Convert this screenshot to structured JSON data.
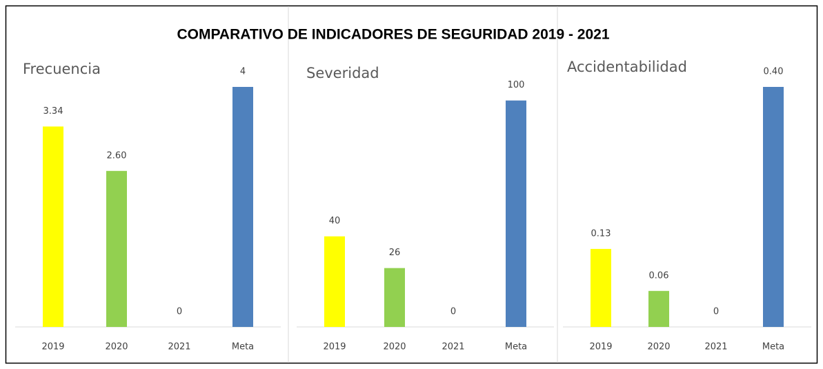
{
  "title": "COMPARATIVO DE INDICADORES DE SEGURIDAD 2019 - 2021",
  "chart_data": [
    {
      "type": "bar",
      "title": "Frecuencia",
      "categories": [
        "2019",
        "2020",
        "2021",
        "Meta"
      ],
      "values": [
        3.34,
        2.6,
        0,
        4
      ],
      "value_labels": [
        "3.34",
        "2.60",
        "0",
        "4"
      ],
      "colors": [
        "#ffff00",
        "#92d050",
        "#a5a5a5",
        "#4f81bd"
      ],
      "ylim": [
        0,
        4
      ]
    },
    {
      "type": "bar",
      "title": "Severidad",
      "categories": [
        "2019",
        "2020",
        "2021",
        "Meta"
      ],
      "values": [
        40,
        26,
        0,
        100
      ],
      "value_labels": [
        "40",
        "26",
        "0",
        "100"
      ],
      "colors": [
        "#ffff00",
        "#92d050",
        "#a5a5a5",
        "#4f81bd"
      ],
      "ylim": [
        0,
        106
      ]
    },
    {
      "type": "bar",
      "title": "Accidentabilidad",
      "categories": [
        "2019",
        "2020",
        "2021",
        "Meta"
      ],
      "values": [
        0.13,
        0.06,
        0,
        0.4
      ],
      "value_labels": [
        "0.13",
        "0.06",
        "0",
        "0.40"
      ],
      "colors": [
        "#ffff00",
        "#92d050",
        "#a5a5a5",
        "#4f81bd"
      ],
      "ylim": [
        0,
        0.4
      ]
    }
  ]
}
